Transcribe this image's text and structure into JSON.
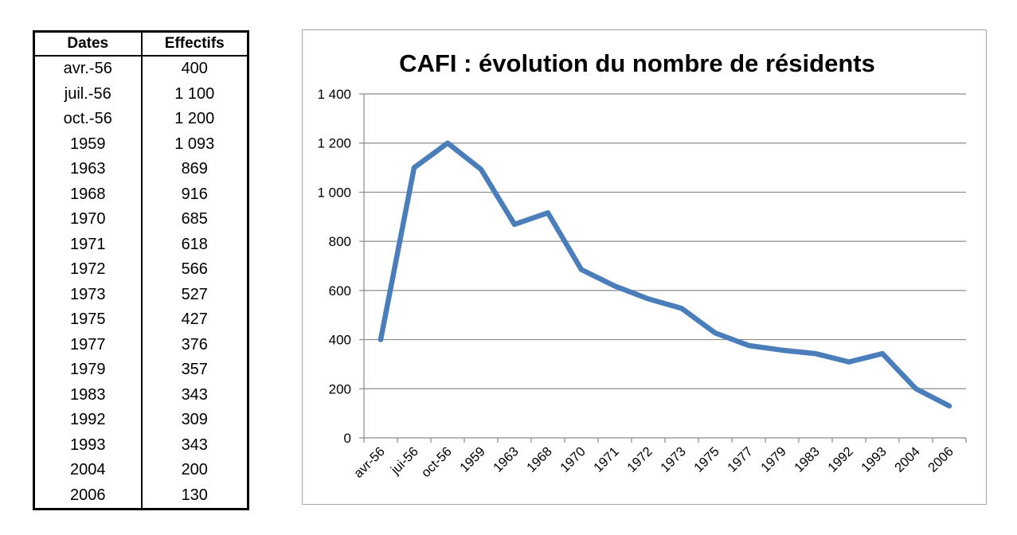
{
  "table": {
    "headers": {
      "dates": "Dates",
      "effectifs": "Effectifs"
    },
    "rows": [
      {
        "date": "avr.-56",
        "value": "400"
      },
      {
        "date": "juil.-56",
        "value": "1 100"
      },
      {
        "date": "oct.-56",
        "value": "1 200"
      },
      {
        "date": "1959",
        "value": "1 093"
      },
      {
        "date": "1963",
        "value": "869"
      },
      {
        "date": "1968",
        "value": "916"
      },
      {
        "date": "1970",
        "value": "685"
      },
      {
        "date": "1971",
        "value": "618"
      },
      {
        "date": "1972",
        "value": "566"
      },
      {
        "date": "1973",
        "value": "527"
      },
      {
        "date": "1975",
        "value": "427"
      },
      {
        "date": "1977",
        "value": "376"
      },
      {
        "date": "1979",
        "value": "357"
      },
      {
        "date": "1983",
        "value": "343"
      },
      {
        "date": "1992",
        "value": "309"
      },
      {
        "date": "1993",
        "value": "343"
      },
      {
        "date": "2004",
        "value": "200"
      },
      {
        "date": "2006",
        "value": "130"
      }
    ]
  },
  "chart_data": {
    "type": "line",
    "title": "CAFI : évolution du nombre de résidents",
    "xlabel": "",
    "ylabel": "",
    "categories": [
      "avr-56",
      "jui-56",
      "oct-56",
      "1959",
      "1963",
      "1968",
      "1970",
      "1971",
      "1972",
      "1973",
      "1975",
      "1977",
      "1979",
      "1983",
      "1992",
      "1993",
      "2004",
      "2006"
    ],
    "series": [
      {
        "values": [
          400,
          1100,
          1200,
          1093,
          869,
          916,
          685,
          618,
          566,
          527,
          427,
          376,
          357,
          343,
          309,
          343,
          200,
          130
        ]
      }
    ],
    "ylim": [
      0,
      1400
    ],
    "yticks": [
      0,
      200,
      400,
      600,
      800,
      1000,
      1200,
      1400
    ],
    "ytick_labels": [
      "0",
      "200",
      "400",
      "600",
      "800",
      "1 000",
      "1 200",
      "1 400"
    ],
    "grid": true,
    "line_color": "#4a7ebb",
    "grid_color": "#8c8c8c"
  }
}
